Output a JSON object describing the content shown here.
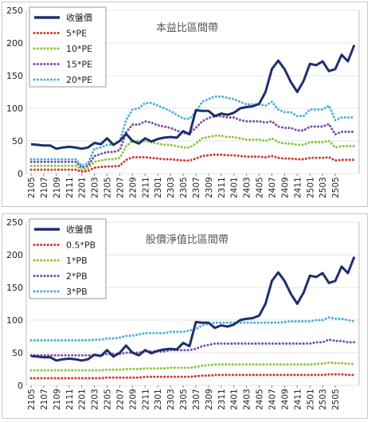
{
  "chart_data": [
    {
      "type": "line",
      "title": "本益比區間帶",
      "ylim": [
        0,
        250
      ],
      "yticks": [
        0,
        50,
        100,
        150,
        200,
        250
      ],
      "xticks": [
        "2105",
        "2107",
        "2109",
        "2111",
        "2201",
        "2203",
        "2205",
        "2207",
        "2209",
        "2211",
        "2301",
        "2303",
        "2305",
        "2307",
        "2309",
        "2311",
        "2401",
        "2403",
        "2405",
        "2407",
        "2409",
        "2411",
        "2501",
        "2503",
        "2505"
      ],
      "legend_position": "top-left",
      "series": [
        {
          "name": "收盤價",
          "color": "#1f2f6e",
          "style": "solid",
          "values": [
            45,
            44,
            43,
            43,
            38,
            40,
            41,
            40,
            38,
            40,
            47,
            45,
            54,
            44,
            50,
            61,
            50,
            46,
            54,
            49,
            53,
            55,
            56,
            55,
            65,
            60,
            97,
            96,
            96,
            88,
            92,
            90,
            93,
            100,
            102,
            103,
            107,
            125,
            160,
            173,
            160,
            140,
            125,
            142,
            168,
            166,
            172,
            157,
            160,
            182,
            172,
            197
          ]
        },
        {
          "name": "5*PE",
          "color": "#d03a35",
          "style": "dotted",
          "values": [
            6,
            6,
            6,
            6,
            6,
            6,
            6,
            6,
            3,
            4,
            9,
            10,
            11,
            11,
            12,
            21,
            25,
            25,
            25,
            24,
            23,
            22,
            22,
            21,
            20,
            20,
            23,
            27,
            28,
            29,
            29,
            28,
            28,
            27,
            26,
            26,
            26,
            25,
            27,
            24,
            23,
            23,
            22,
            22,
            24,
            24,
            24,
            25,
            20,
            21,
            21,
            21
          ]
        },
        {
          "name": "10*PE",
          "color": "#8cc63f",
          "style": "dotted",
          "values": [
            12,
            12,
            12,
            12,
            12,
            12,
            12,
            12,
            6,
            8,
            18,
            20,
            22,
            22,
            24,
            42,
            50,
            50,
            50,
            48,
            46,
            44,
            44,
            42,
            40,
            40,
            46,
            54,
            56,
            58,
            58,
            56,
            56,
            54,
            52,
            52,
            52,
            50,
            54,
            48,
            46,
            46,
            44,
            44,
            48,
            48,
            48,
            50,
            40,
            42,
            42,
            42
          ]
        },
        {
          "name": "15*PE",
          "color": "#7b4fa8",
          "style": "dotted",
          "values": [
            18,
            18,
            18,
            18,
            18,
            18,
            18,
            18,
            9,
            12,
            27,
            30,
            33,
            33,
            36,
            63,
            75,
            75,
            80,
            78,
            74,
            72,
            70,
            66,
            62,
            62,
            70,
            80,
            85,
            88,
            88,
            86,
            86,
            82,
            80,
            80,
            80,
            78,
            80,
            72,
            70,
            70,
            66,
            66,
            72,
            72,
            72,
            76,
            60,
            64,
            64,
            64
          ]
        },
        {
          "name": "20*PE",
          "color": "#4bb3d4",
          "style": "dotted",
          "values": [
            22,
            22,
            22,
            22,
            22,
            22,
            22,
            22,
            12,
            16,
            38,
            40,
            44,
            44,
            50,
            82,
            98,
            100,
            108,
            108,
            104,
            100,
            96,
            90,
            84,
            84,
            94,
            110,
            114,
            118,
            118,
            116,
            114,
            110,
            106,
            106,
            106,
            104,
            110,
            98,
            94,
            94,
            88,
            88,
            98,
            98,
            98,
            104,
            82,
            86,
            86,
            86
          ]
        }
      ]
    },
    {
      "type": "line",
      "title": "股價淨值比區間帶",
      "ylim": [
        0,
        250
      ],
      "yticks": [
        0,
        50,
        100,
        150,
        200,
        250
      ],
      "xticks": [
        "2105",
        "2107",
        "2109",
        "2111",
        "2201",
        "2203",
        "2205",
        "2207",
        "2209",
        "2211",
        "2301",
        "2303",
        "2305",
        "2307",
        "2309",
        "2311",
        "2401",
        "2403",
        "2405",
        "2407",
        "2409",
        "2411",
        "2501",
        "2503",
        "2505"
      ],
      "legend_position": "top-left",
      "series": [
        {
          "name": "收盤價",
          "color": "#1f2f6e",
          "style": "solid",
          "values": [
            45,
            44,
            43,
            43,
            38,
            40,
            41,
            40,
            38,
            40,
            47,
            45,
            54,
            44,
            50,
            61,
            50,
            46,
            54,
            49,
            53,
            55,
            56,
            55,
            65,
            60,
            97,
            96,
            96,
            88,
            92,
            90,
            93,
            100,
            102,
            103,
            107,
            125,
            160,
            173,
            160,
            140,
            125,
            142,
            168,
            166,
            172,
            157,
            160,
            182,
            172,
            197
          ]
        },
        {
          "name": "0.5*PB",
          "color": "#d03a35",
          "style": "dotted",
          "values": [
            11,
            11,
            11,
            11,
            11,
            11,
            11,
            11,
            11,
            11,
            11,
            11,
            12,
            12,
            12,
            12,
            12,
            12,
            13,
            13,
            13,
            13,
            13,
            13,
            13,
            13,
            14,
            15,
            15,
            16,
            16,
            16,
            16,
            16,
            16,
            16,
            16,
            16,
            16,
            16,
            16,
            16,
            16,
            16,
            16,
            16,
            16,
            17,
            17,
            17,
            16,
            16
          ]
        },
        {
          "name": "1*PB",
          "color": "#8cc63f",
          "style": "dotted",
          "values": [
            23,
            23,
            23,
            23,
            23,
            23,
            23,
            23,
            23,
            23,
            23,
            23,
            24,
            24,
            24,
            25,
            25,
            25,
            26,
            26,
            26,
            26,
            27,
            27,
            27,
            27,
            28,
            30,
            31,
            32,
            32,
            32,
            32,
            32,
            32,
            32,
            32,
            32,
            32,
            32,
            32,
            32,
            32,
            32,
            32,
            33,
            33,
            35,
            34,
            34,
            33,
            33
          ]
        },
        {
          "name": "2*PB",
          "color": "#7b4fa8",
          "style": "dotted",
          "values": [
            46,
            46,
            46,
            46,
            46,
            46,
            46,
            46,
            46,
            46,
            46,
            46,
            48,
            48,
            48,
            50,
            50,
            50,
            52,
            52,
            52,
            52,
            54,
            54,
            54,
            54,
            56,
            60,
            62,
            64,
            64,
            64,
            64,
            64,
            64,
            64,
            64,
            64,
            64,
            64,
            64,
            64,
            64,
            64,
            64,
            66,
            66,
            70,
            68,
            68,
            66,
            66
          ]
        },
        {
          "name": "3*PB",
          "color": "#4bb3d4",
          "style": "dotted",
          "values": [
            69,
            69,
            69,
            69,
            69,
            69,
            69,
            69,
            69,
            69,
            70,
            70,
            72,
            72,
            73,
            76,
            76,
            78,
            80,
            80,
            80,
            80,
            82,
            82,
            82,
            84,
            86,
            92,
            94,
            96,
            96,
            96,
            96,
            96,
            96,
            96,
            96,
            96,
            96,
            96,
            97,
            98,
            98,
            98,
            98,
            100,
            100,
            104,
            102,
            102,
            100,
            98
          ]
        }
      ]
    }
  ]
}
